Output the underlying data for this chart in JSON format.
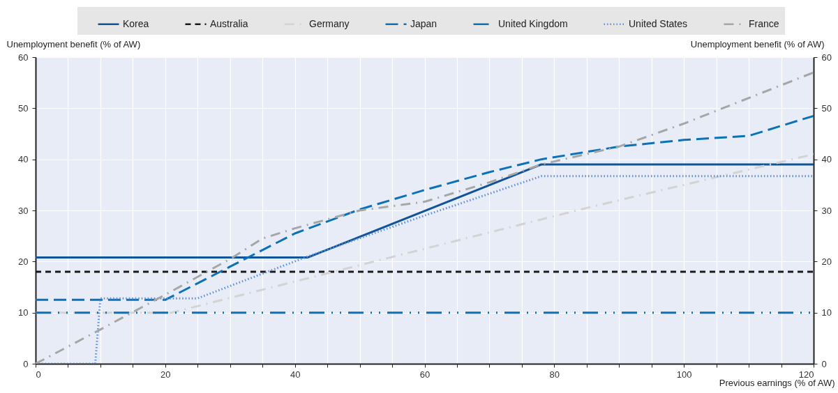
{
  "chart_data": {
    "type": "line",
    "xlabel": "Previous earnings  (% of AW)",
    "ylabel": "Unemployment benefit (% of AW)",
    "y2label": "Unemployment benefit (% of AW)",
    "xlim": [
      0,
      120
    ],
    "xticks": [
      0,
      {
        "value": 5,
        "label": null
      },
      {
        "value": 10,
        "label": null
      },
      {
        "value": 15,
        "label": null
      },
      20,
      {
        "value": 25,
        "label": null
      },
      {
        "value": 30,
        "label": null
      },
      {
        "value": 35,
        "label": null
      },
      40,
      {
        "value": 45,
        "label": null
      },
      {
        "value": 50,
        "label": null
      },
      {
        "value": 55,
        "label": null
      },
      60,
      {
        "value": 65,
        "label": null
      },
      {
        "value": 70,
        "label": null
      },
      {
        "value": 75,
        "label": null
      },
      80,
      {
        "value": 85,
        "label": null
      },
      {
        "value": 90,
        "label": null
      },
      {
        "value": 95,
        "label": null
      },
      100,
      {
        "value": 105,
        "label": null
      },
      {
        "value": 110,
        "label": null
      },
      {
        "value": 115,
        "label": null
      },
      120
    ],
    "ylim": [
      0,
      60
    ],
    "yticks": [
      0,
      10,
      20,
      30,
      40,
      50,
      60
    ],
    "y2lim": [
      0,
      60
    ],
    "y2ticks": [
      0,
      10,
      20,
      30,
      40,
      50,
      60
    ],
    "grid": true,
    "legend": "top",
    "series": [
      {
        "name": "Korea",
        "color": "#0f5499",
        "line_style": "solid",
        "x": [
          0,
          42,
          78,
          120
        ],
        "values": [
          20.8,
          20.8,
          39,
          39
        ]
      },
      {
        "name": "Australia",
        "color": "#1a1a1a",
        "line_style": "dashed",
        "x": [
          0,
          120
        ],
        "values": [
          18,
          18
        ]
      },
      {
        "name": "Germany",
        "color": "#d3d3d3",
        "line_style": "dashdot",
        "x": [
          0,
          21,
          60,
          86,
          120
        ],
        "values": [
          10,
          10,
          22.5,
          30.8,
          41
        ]
      },
      {
        "name": "Japan",
        "color": "#0b72b9",
        "line_style": "longdash",
        "x": [
          0,
          20,
          30,
          40,
          50,
          60,
          70,
          78,
          90,
          100,
          110,
          120
        ],
        "values": [
          12.5,
          12.5,
          19,
          25.5,
          30.2,
          34,
          37.5,
          40,
          42.5,
          43.8,
          44.6,
          48.5
        ]
      },
      {
        "name": "United Kingdom",
        "color": "#0b72b9",
        "line_style": "dashdotdot",
        "x": [
          0,
          120
        ],
        "values": [
          10,
          10
        ]
      },
      {
        "name": "United States",
        "color": "#5b8fd9",
        "line_style": "dotted",
        "x": [
          0,
          9.2,
          10,
          25,
          42,
          60,
          78,
          120
        ],
        "values": [
          0,
          0,
          12.8,
          12.8,
          21,
          29,
          36.7,
          36.7
        ]
      },
      {
        "name": "France",
        "color": "#a6a6a6",
        "line_style": "dashdot",
        "x": [
          0,
          10,
          20,
          30,
          35,
          40,
          50,
          60,
          70,
          78,
          90,
          100,
          110,
          120
        ],
        "values": [
          0,
          6.7,
          13.5,
          20.5,
          24.5,
          26.5,
          30,
          31.7,
          35.5,
          39,
          42.5,
          47,
          52,
          57
        ]
      }
    ]
  }
}
